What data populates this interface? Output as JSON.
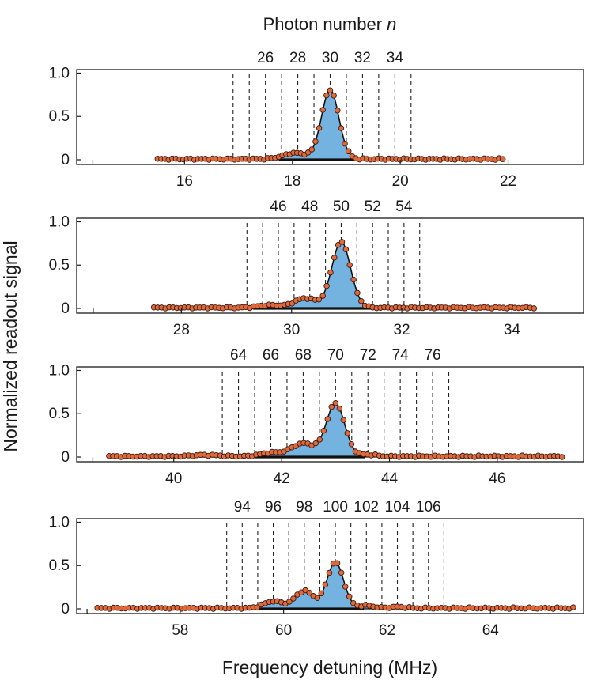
{
  "figure": {
    "top_title_text": "Photon number ",
    "top_title_var": "n",
    "xlabel": "Frequency detuning (MHz)",
    "ylabel": "Normalized readout signal"
  },
  "chart_data": [
    {
      "type": "scatter",
      "ylim": [
        0,
        1.05
      ],
      "yticks": [
        0,
        0.5,
        1.0
      ],
      "ytick_labels": [
        "0",
        "0.5",
        "1.0"
      ],
      "xlim": [
        14,
        23.4
      ],
      "xticks": [
        14.3,
        16,
        18,
        20,
        22
      ],
      "xtick_labels": [
        "",
        "16",
        "18",
        "20",
        "22"
      ],
      "n_axis": {
        "values": [
          26,
          28,
          30,
          32,
          34
        ],
        "labels": [
          "26",
          "28",
          "30",
          "32",
          "34"
        ],
        "dashed_at": [
          24,
          25,
          26,
          27,
          28,
          29,
          30,
          31,
          32,
          33,
          34,
          35
        ],
        "n_to_freq": [
          18.7,
          0.3
        ]
      },
      "data_range": [
        15.5,
        21.9
      ],
      "peaks": [
        [
          18.7,
          0.8,
          0.16
        ],
        [
          18.05,
          0.07,
          0.22
        ]
      ],
      "points": 95
    },
    {
      "type": "scatter",
      "ylim": [
        0,
        1.05
      ],
      "yticks": [
        0,
        0.5,
        1.0
      ],
      "ytick_labels": [
        "0",
        "0.5",
        "1.0"
      ],
      "xlim": [
        26.1,
        35.3
      ],
      "xticks": [
        26.4,
        28,
        30,
        32,
        34
      ],
      "xtick_labels": [
        "",
        "28",
        "30",
        "32",
        "34"
      ],
      "n_axis": {
        "values": [
          46,
          48,
          50,
          52,
          54
        ],
        "labels": [
          "46",
          "48",
          "50",
          "52",
          "54"
        ],
        "dashed_at": [
          44,
          45,
          46,
          47,
          48,
          49,
          50,
          51,
          52,
          53,
          54,
          55
        ],
        "n_to_freq": [
          30.9,
          0.285
        ]
      },
      "data_range": [
        27.5,
        34.4
      ],
      "peaks": [
        [
          30.9,
          0.76,
          0.17
        ],
        [
          30.25,
          0.11,
          0.2
        ],
        [
          29.6,
          0.03,
          0.2
        ]
      ],
      "points": 100
    },
    {
      "type": "scatter",
      "ylim": [
        0,
        1.05
      ],
      "yticks": [
        0,
        0.5,
        1.0
      ],
      "ytick_labels": [
        "0",
        "0.5",
        "1.0"
      ],
      "xlim": [
        38.2,
        47.6
      ],
      "xticks": [
        38.5,
        40,
        42,
        44,
        46
      ],
      "xtick_labels": [
        "",
        "40",
        "42",
        "44",
        "46"
      ],
      "n_axis": {
        "values": [
          64,
          66,
          68,
          70,
          72,
          74,
          76
        ],
        "labels": [
          "64",
          "66",
          "68",
          "70",
          "72",
          "74",
          "76"
        ],
        "dashed_at": [
          63,
          64,
          65,
          66,
          67,
          68,
          69,
          70,
          71,
          72,
          73,
          74,
          75,
          76,
          77
        ],
        "n_to_freq": [
          43.0,
          0.3
        ]
      },
      "data_range": [
        38.8,
        47.2
      ],
      "peaks": [
        [
          43.0,
          0.61,
          0.17
        ],
        [
          42.4,
          0.15,
          0.22
        ],
        [
          41.8,
          0.04,
          0.2
        ],
        [
          43.6,
          0.02,
          0.15
        ],
        [
          40.6,
          0.015,
          0.25
        ]
      ],
      "points": 115
    },
    {
      "type": "scatter",
      "ylim": [
        0,
        1.05
      ],
      "yticks": [
        0,
        0.5,
        1.0
      ],
      "ytick_labels": [
        "0",
        "0.5",
        "1.0"
      ],
      "xlim": [
        56.0,
        65.8
      ],
      "xticks": [
        56.2,
        58,
        60,
        62,
        64
      ],
      "xtick_labels": [
        "",
        "58",
        "60",
        "62",
        "64"
      ],
      "n_axis": {
        "values": [
          94,
          96,
          98,
          100,
          102,
          104,
          106
        ],
        "labels": [
          "94",
          "96",
          "98",
          "100",
          "102",
          "104",
          "106"
        ],
        "dashed_at": [
          93,
          94,
          95,
          96,
          97,
          98,
          99,
          100,
          101,
          102,
          103,
          104,
          105,
          106,
          107
        ],
        "n_to_freq": [
          61.0,
          0.3
        ]
      },
      "data_range": [
        56.4,
        65.6
      ],
      "peaks": [
        [
          61.0,
          0.53,
          0.16
        ],
        [
          60.4,
          0.2,
          0.18
        ],
        [
          59.8,
          0.08,
          0.18
        ],
        [
          61.6,
          0.03,
          0.15
        ],
        [
          62.2,
          0.015,
          0.15
        ]
      ],
      "points": 120
    }
  ]
}
